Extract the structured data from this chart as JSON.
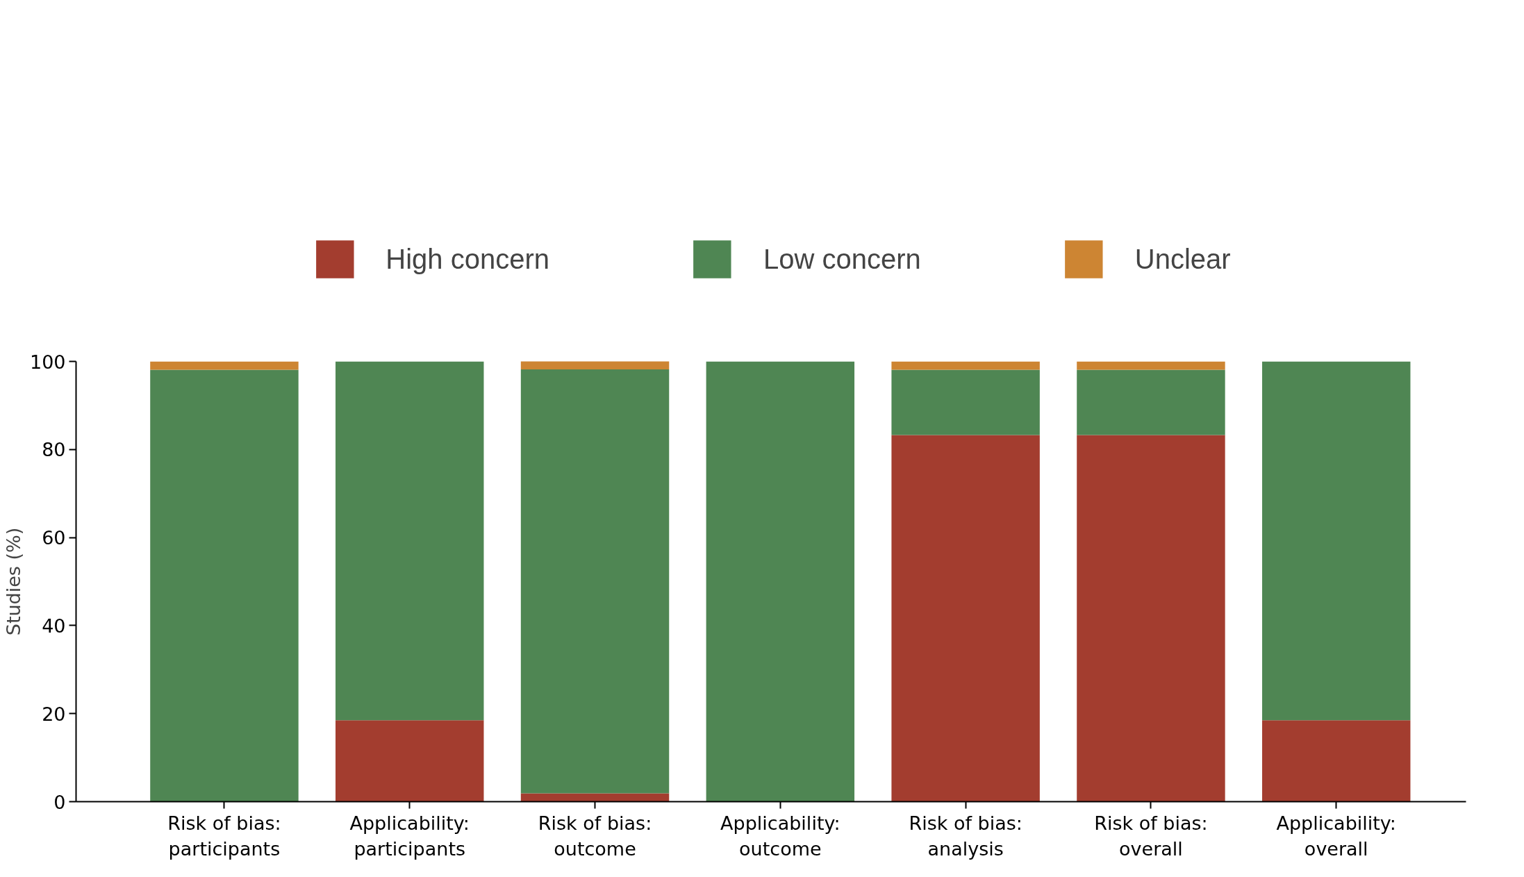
{
  "chart_data": {
    "type": "bar",
    "stacked": true,
    "ylabel": "Studies (%)",
    "categories": [
      "Risk of bias:\nparticipants",
      "Applicability:\nparticipants",
      "Risk of bias:\noutcome",
      "Applicability:\noutcome",
      "Risk of bias:\nanalysis",
      "Risk of bias:\noverall",
      "Applicability:\noverall"
    ],
    "series": [
      {
        "name": "High concern",
        "color": "#a33d2f",
        "values": [
          0,
          18.5,
          1.9,
          0,
          83.3,
          83.3,
          18.5
        ]
      },
      {
        "name": "Low concern",
        "color": "#4f8653",
        "values": [
          98.1,
          81.5,
          96.3,
          100,
          14.8,
          14.8,
          81.5
        ]
      },
      {
        "name": "Unclear",
        "color": "#cd8533",
        "values": [
          1.9,
          0,
          1.9,
          0,
          1.9,
          1.9,
          0
        ]
      }
    ],
    "ylim": [
      0,
      100
    ],
    "yticks": [
      0,
      20,
      40,
      60,
      80,
      100
    ],
    "grid": false,
    "legend": "top"
  }
}
